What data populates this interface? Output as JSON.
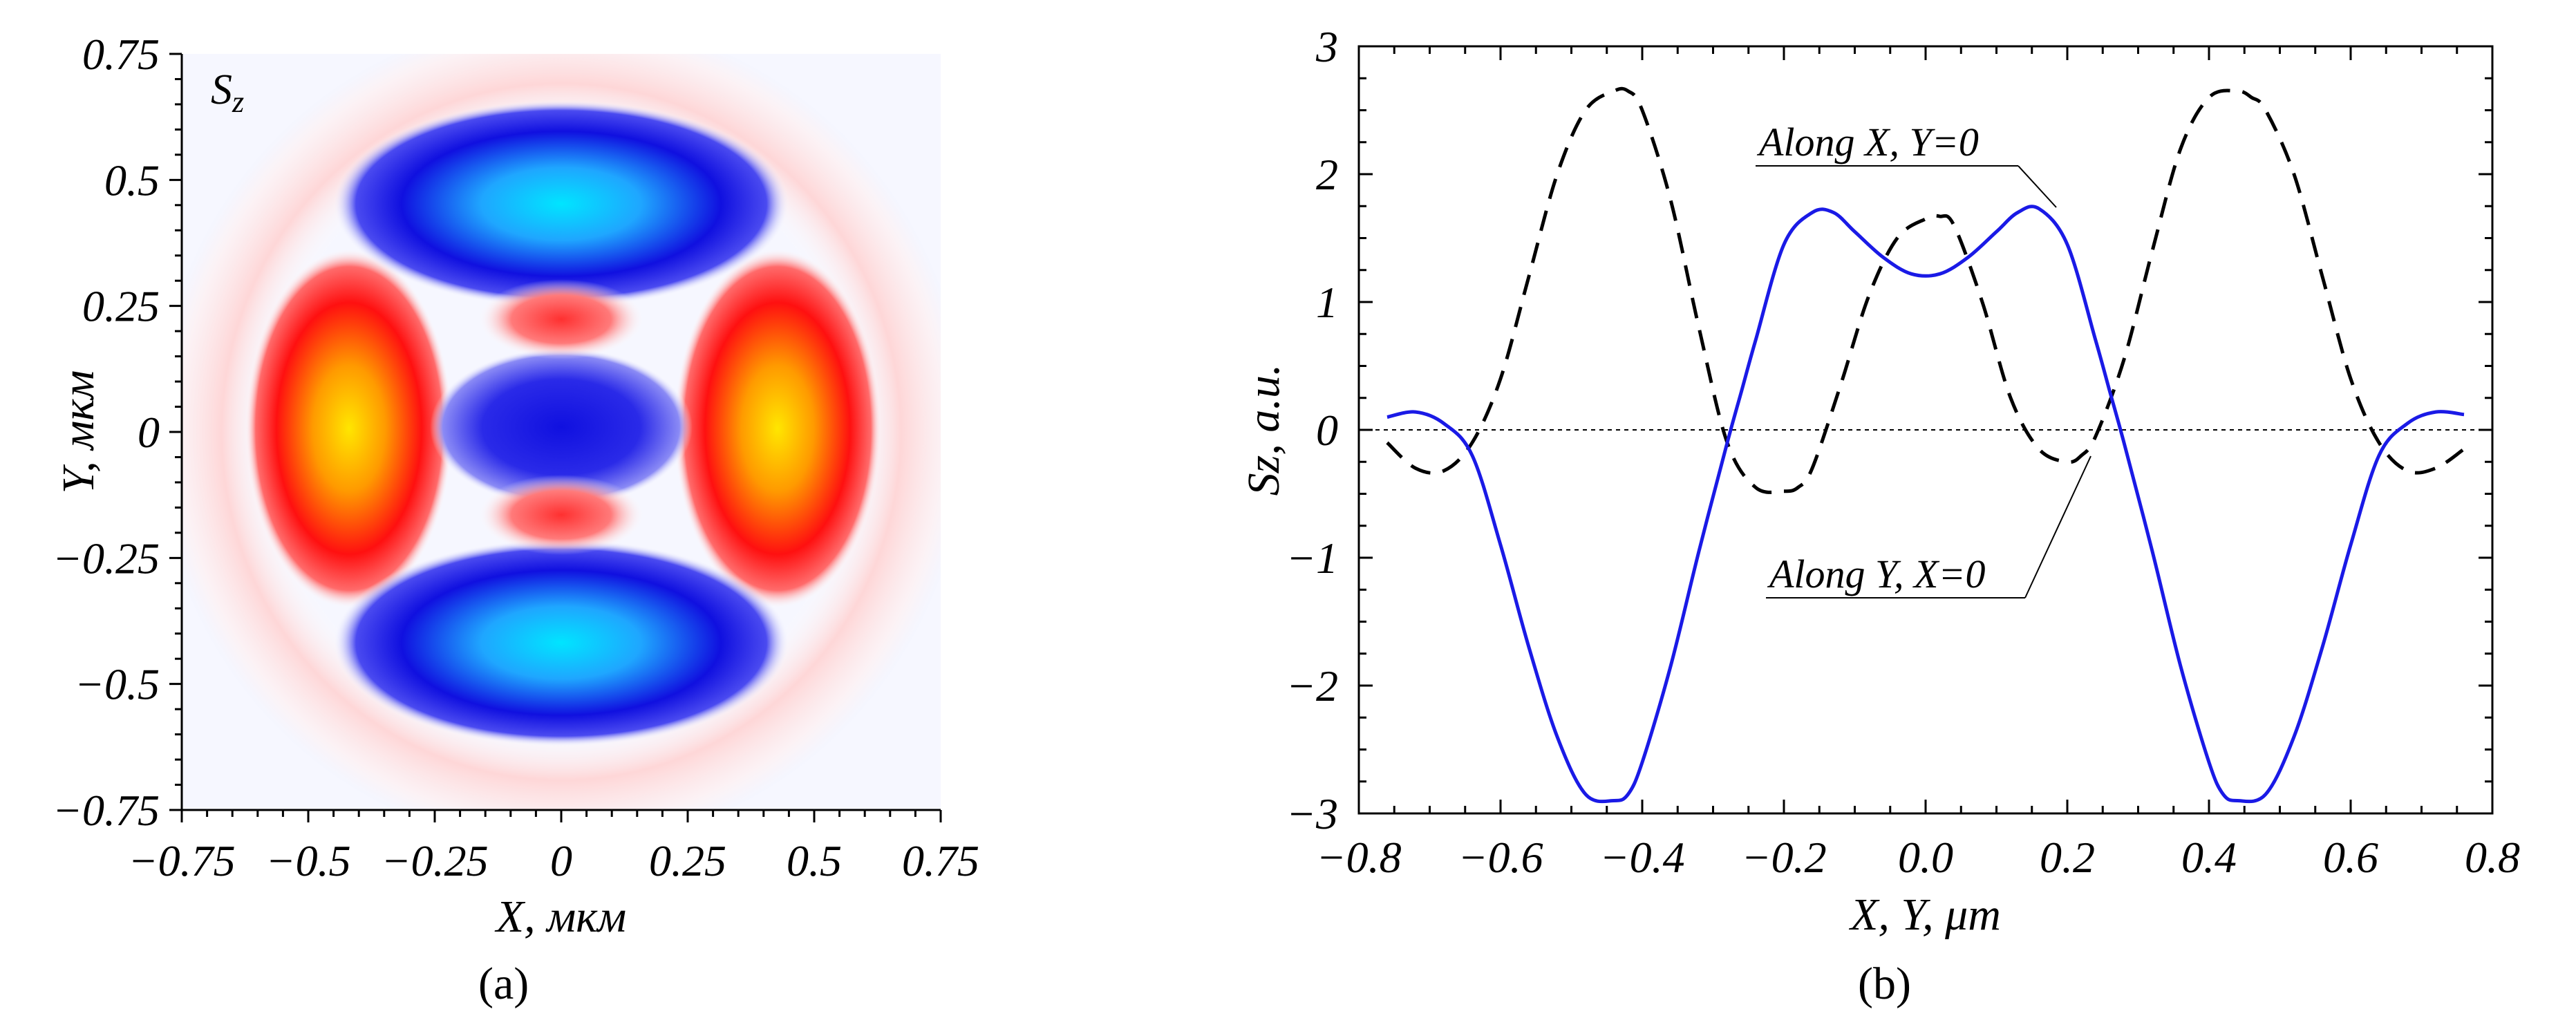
{
  "figure": {
    "panel_a_label": "(a)",
    "panel_b_label": "(b)"
  },
  "colors": {
    "negative_deep": "#1010e0",
    "negative_peak": "#00e5ff",
    "positive_deep": "#ff1010",
    "positive_peak": "#ffe600",
    "zero": "#ffffff",
    "series_x": "#1a1ae6",
    "series_y": "#000000",
    "zero_line": "#000000"
  },
  "chart_data": [
    {
      "type": "heatmap",
      "title": "Sz",
      "xlabel": "X, мкм",
      "ylabel": "Y, мкм",
      "xlim": [
        -0.75,
        0.75
      ],
      "ylim": [
        -0.75,
        0.75
      ],
      "x_ticks": [
        "−0.75",
        "−0.5",
        "−0.25",
        "0",
        "0.25",
        "0.5",
        "0.75"
      ],
      "y_ticks": [
        "0.75",
        "0.5",
        "0.25",
        "0",
        "−0.25",
        "−0.5",
        "−0.75"
      ],
      "x_tick_values": [
        -0.75,
        -0.5,
        -0.25,
        0,
        0.25,
        0.5,
        0.75
      ],
      "y_tick_values": [
        0.75,
        0.5,
        0.25,
        0,
        -0.25,
        -0.5,
        -0.75
      ],
      "colormap": "blue(negative)-white(zero)-red/yellow(positive)",
      "features": [
        {
          "name": "top lobe",
          "sign": "negative",
          "x": 0.0,
          "y": 0.44,
          "peak": -2.9
        },
        {
          "name": "bottom lobe",
          "sign": "negative",
          "x": 0.0,
          "y": -0.44,
          "peak": -2.9
        },
        {
          "name": "left lobe",
          "sign": "positive",
          "x": -0.44,
          "y": 0.0,
          "peak": 2.65
        },
        {
          "name": "right lobe",
          "sign": "positive",
          "x": 0.44,
          "y": 0.0,
          "peak": 2.65
        },
        {
          "name": "center",
          "sign": "negative",
          "x": 0.0,
          "y": 0.0,
          "peak": -0.5
        },
        {
          "name": "inner top",
          "sign": "positive",
          "x": 0.0,
          "y": 0.2,
          "peak": 0.6
        },
        {
          "name": "inner bottom",
          "sign": "positive",
          "x": 0.0,
          "y": -0.2,
          "peak": 0.6
        }
      ]
    },
    {
      "type": "line",
      "xlabel": "X, Y, μm",
      "ylabel": "Sz, a.u.",
      "xlim": [
        -0.8,
        0.8
      ],
      "ylim": [
        -3,
        3
      ],
      "x_ticks": [
        "−0.8",
        "−0.6",
        "−0.4",
        "−0.2",
        "0.0",
        "0.2",
        "0.4",
        "0.6",
        "0.8"
      ],
      "x_tick_values": [
        -0.8,
        -0.6,
        -0.4,
        -0.2,
        0.0,
        0.2,
        0.4,
        0.6,
        0.8
      ],
      "y_ticks": [
        "3",
        "2",
        "1",
        "0",
        "−1",
        "−2",
        "−3"
      ],
      "y_tick_values": [
        3,
        2,
        1,
        0,
        -1,
        -2,
        -3
      ],
      "zero_line": true,
      "series": [
        {
          "name": "Along X, Y=0",
          "style": "solid",
          "x": [
            -0.76,
            -0.72,
            -0.68,
            -0.64,
            -0.6,
            -0.56,
            -0.52,
            -0.48,
            -0.44,
            -0.42,
            -0.4,
            -0.36,
            -0.32,
            -0.28,
            -0.26,
            -0.24,
            -0.2,
            -0.16,
            -0.13,
            -0.1,
            -0.06,
            -0.02,
            0.02,
            0.06,
            0.1,
            0.13,
            0.16,
            0.2,
            0.24,
            0.26,
            0.28,
            0.32,
            0.36,
            0.4,
            0.42,
            0.44,
            0.48,
            0.52,
            0.56,
            0.6,
            0.64,
            0.68,
            0.72,
            0.76
          ],
          "values": [
            0.1,
            0.14,
            0.05,
            -0.2,
            -0.9,
            -1.7,
            -2.4,
            -2.85,
            -2.9,
            -2.85,
            -2.6,
            -1.85,
            -0.95,
            -0.1,
            0.3,
            0.7,
            1.45,
            1.7,
            1.7,
            1.55,
            1.35,
            1.22,
            1.22,
            1.35,
            1.55,
            1.7,
            1.73,
            1.45,
            0.7,
            0.3,
            -0.1,
            -0.95,
            -1.85,
            -2.6,
            -2.85,
            -2.9,
            -2.85,
            -2.4,
            -1.7,
            -0.9,
            -0.2,
            0.05,
            0.14,
            0.12
          ]
        },
        {
          "name": "Along Y, X=0",
          "style": "dashed",
          "x": [
            -0.76,
            -0.72,
            -0.68,
            -0.64,
            -0.6,
            -0.56,
            -0.52,
            -0.48,
            -0.44,
            -0.42,
            -0.4,
            -0.36,
            -0.32,
            -0.28,
            -0.24,
            -0.2,
            -0.18,
            -0.16,
            -0.12,
            -0.08,
            -0.04,
            0.0,
            0.02,
            0.04,
            0.08,
            0.12,
            0.16,
            0.2,
            0.22,
            0.24,
            0.28,
            0.32,
            0.36,
            0.4,
            0.44,
            0.46,
            0.48,
            0.52,
            0.56,
            0.6,
            0.64,
            0.68,
            0.72,
            0.76
          ],
          "values": [
            -0.1,
            -0.3,
            -0.32,
            -0.1,
            0.4,
            1.2,
            2.0,
            2.5,
            2.65,
            2.65,
            2.5,
            1.8,
            0.8,
            -0.1,
            -0.45,
            -0.48,
            -0.45,
            -0.3,
            0.35,
            1.05,
            1.5,
            1.65,
            1.67,
            1.6,
            1.0,
            0.25,
            -0.15,
            -0.25,
            -0.2,
            -0.05,
            0.55,
            1.4,
            2.2,
            2.6,
            2.65,
            2.6,
            2.5,
            2.0,
            1.2,
            0.4,
            -0.1,
            -0.32,
            -0.3,
            -0.15
          ]
        }
      ],
      "annotations": [
        {
          "text": "Along X, Y=0",
          "series": "Along X, Y=0"
        },
        {
          "text": "Along Y, X=0",
          "series": "Along Y, X=0"
        }
      ]
    }
  ]
}
